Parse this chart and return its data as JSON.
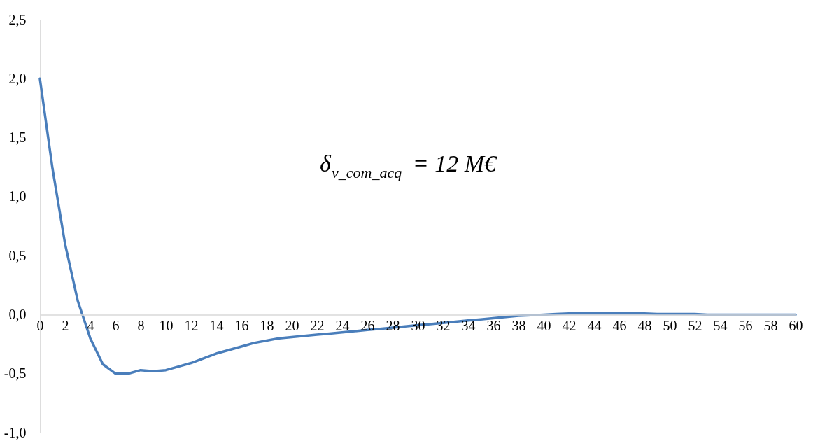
{
  "chart_data": {
    "type": "line",
    "x": [
      0,
      1,
      2,
      3,
      4,
      5,
      6,
      7,
      8,
      9,
      10,
      11,
      12,
      13,
      14,
      15,
      16,
      17,
      18,
      19,
      20,
      21,
      22,
      23,
      24,
      25,
      26,
      27,
      28,
      29,
      30,
      31,
      32,
      33,
      34,
      35,
      36,
      37,
      38,
      39,
      40,
      41,
      42,
      43,
      44,
      45,
      46,
      47,
      48,
      49,
      50,
      51,
      52,
      53,
      54,
      55,
      56,
      57,
      58,
      59,
      60
    ],
    "series": [
      {
        "color": "#4a7ebb",
        "values": [
          2.0,
          1.24,
          0.6,
          0.12,
          -0.2,
          -0.42,
          -0.5,
          -0.5,
          -0.47,
          -0.48,
          -0.47,
          -0.44,
          -0.41,
          -0.37,
          -0.33,
          -0.3,
          -0.27,
          -0.24,
          -0.22,
          -0.2,
          -0.19,
          -0.18,
          -0.17,
          -0.16,
          -0.15,
          -0.14,
          -0.13,
          -0.12,
          -0.11,
          -0.1,
          -0.09,
          -0.08,
          -0.07,
          -0.06,
          -0.05,
          -0.04,
          -0.03,
          -0.02,
          -0.01,
          -0.005,
          0.0,
          0.005,
          0.01,
          0.01,
          0.01,
          0.01,
          0.01,
          0.01,
          0.01,
          0.005,
          0.005,
          0.005,
          0.005,
          0.0,
          0.0,
          0.0,
          0.0,
          0.0,
          0.0,
          0.0,
          0.0
        ]
      }
    ],
    "xlim": [
      0,
      60
    ],
    "xticks": [
      0,
      2,
      4,
      6,
      8,
      10,
      12,
      14,
      16,
      18,
      20,
      22,
      24,
      26,
      28,
      30,
      32,
      34,
      36,
      38,
      40,
      42,
      44,
      46,
      48,
      50,
      52,
      54,
      56,
      58,
      60
    ],
    "ylim": [
      -1.0,
      2.5
    ],
    "yticks": [
      {
        "value": -1.0,
        "label": "-1,0"
      },
      {
        "value": -0.5,
        "label": "-0,5"
      },
      {
        "value": 0.0,
        "label": "0,0"
      },
      {
        "value": 0.5,
        "label": "0,5"
      },
      {
        "value": 1.0,
        "label": "1,0"
      },
      {
        "value": 1.5,
        "label": "1,5"
      },
      {
        "value": 2.0,
        "label": "2,0"
      },
      {
        "value": 2.5,
        "label": "2,5"
      }
    ],
    "grid": false,
    "marker": "none",
    "line_style": "solid",
    "annotations": [
      "δ$_{v_com_acq}$ = 12 M€"
    ]
  }
}
